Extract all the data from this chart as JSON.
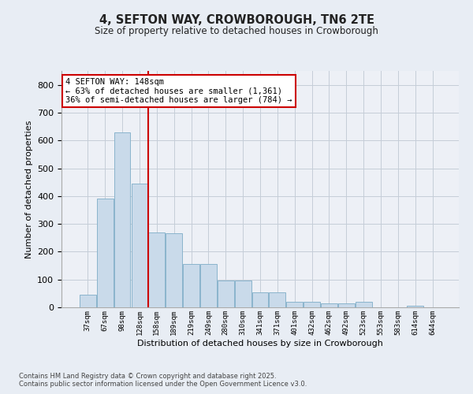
{
  "title1": "4, SEFTON WAY, CROWBOROUGH, TN6 2TE",
  "title2": "Size of property relative to detached houses in Crowborough",
  "xlabel": "Distribution of detached houses by size in Crowborough",
  "ylabel": "Number of detached properties",
  "categories": [
    "37sqm",
    "67sqm",
    "98sqm",
    "128sqm",
    "158sqm",
    "189sqm",
    "219sqm",
    "249sqm",
    "280sqm",
    "310sqm",
    "341sqm",
    "371sqm",
    "401sqm",
    "432sqm",
    "462sqm",
    "492sqm",
    "523sqm",
    "553sqm",
    "583sqm",
    "614sqm",
    "644sqm"
  ],
  "values": [
    45,
    390,
    630,
    445,
    270,
    265,
    155,
    155,
    95,
    95,
    55,
    55,
    20,
    20,
    15,
    15,
    20,
    0,
    0,
    5,
    0
  ],
  "bar_color": "#c9daea",
  "bar_edge_color": "#8ab4cc",
  "grid_color": "#c5cdd8",
  "annotation_text_line1": "4 SEFTON WAY: 148sqm",
  "annotation_text_line2": "← 63% of detached houses are smaller (1,361)",
  "annotation_text_line3": "36% of semi-detached houses are larger (784) →",
  "vline_color": "#cc0000",
  "box_edge_color": "#cc0000",
  "footnote1": "Contains HM Land Registry data © Crown copyright and database right 2025.",
  "footnote2": "Contains public sector information licensed under the Open Government Licence v3.0.",
  "ylim": [
    0,
    850
  ],
  "yticks": [
    0,
    100,
    200,
    300,
    400,
    500,
    600,
    700,
    800
  ],
  "bg_color": "#e8edf4",
  "plot_bg_color": "#edf0f6"
}
